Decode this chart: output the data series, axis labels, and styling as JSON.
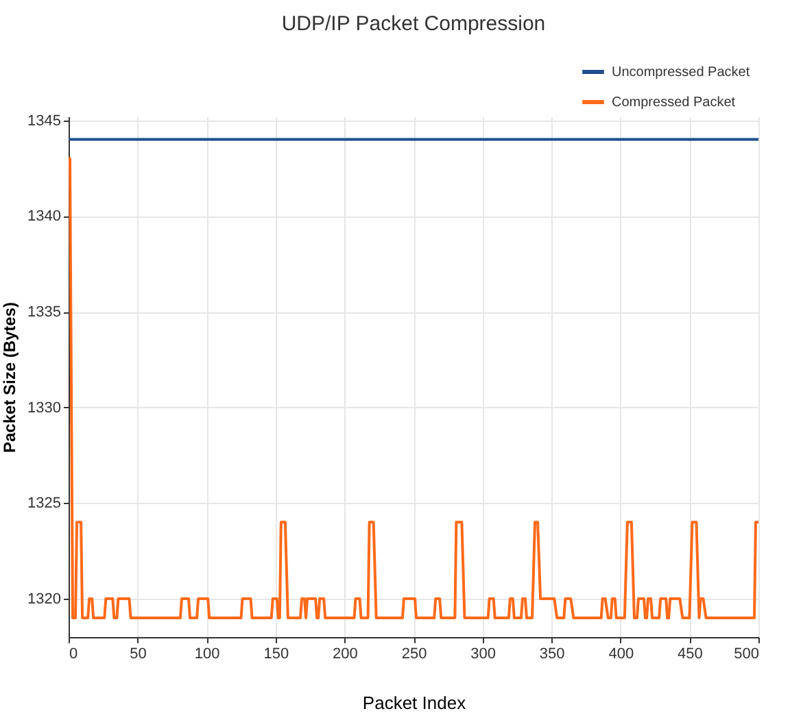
{
  "chart_data": {
    "type": "line",
    "title": "UDP/IP Packet Compression",
    "xlabel": "Packet Index",
    "ylabel": "Packet Size (Bytes)",
    "xlim": [
      0,
      500
    ],
    "xticks": [
      0,
      50,
      100,
      150,
      200,
      250,
      300,
      350,
      400,
      450,
      500
    ],
    "ylim": [
      1318,
      1345.2
    ],
    "yticks": [
      1320,
      1325,
      1330,
      1335,
      1340,
      1345
    ],
    "grid": true,
    "legend": "top right",
    "marker": "none",
    "line_style": "solid",
    "series": [
      {
        "name": "Uncompressed Packet",
        "color": "#1f4e8c",
        "x": [
          0,
          500
        ],
        "values": [
          1344,
          1344
        ]
      },
      {
        "name": "Compressed Packet",
        "color": "#ff6a1a",
        "x": [
          0,
          1,
          3,
          5,
          6,
          9,
          10,
          14,
          15,
          17,
          18,
          26,
          27,
          32,
          33,
          35,
          36,
          44,
          45,
          81,
          82,
          87,
          88,
          93,
          94,
          101,
          102,
          125,
          126,
          132,
          133,
          147,
          148,
          151,
          152,
          153,
          154,
          157,
          159,
          168,
          169,
          171,
          172,
          173,
          179,
          180,
          181,
          182,
          185,
          186,
          207,
          208,
          211,
          212,
          217,
          218,
          221,
          223,
          242,
          243,
          251,
          252,
          265,
          266,
          269,
          270,
          280,
          281,
          285,
          287,
          304,
          305,
          308,
          309,
          319,
          320,
          322,
          323,
          328,
          329,
          331,
          332,
          336,
          338,
          340,
          342,
          352,
          354,
          359,
          360,
          364,
          366,
          386,
          387,
          389,
          391,
          393,
          394,
          396,
          397,
          403,
          405,
          408,
          410,
          412,
          413,
          417,
          418,
          419,
          420,
          422,
          423,
          428,
          429,
          433,
          434,
          435,
          436,
          443,
          445,
          450,
          452,
          455,
          457,
          458,
          460,
          462,
          497,
          498,
          500
        ],
        "values": [
          1343,
          1343,
          1319,
          1319,
          1324,
          1324,
          1319,
          1319,
          1320,
          1320,
          1319,
          1319,
          1320,
          1320,
          1319,
          1319,
          1320,
          1320,
          1319,
          1319,
          1320,
          1320,
          1319,
          1319,
          1320,
          1320,
          1319,
          1319,
          1320,
          1320,
          1319,
          1319,
          1320,
          1320,
          1319,
          1319,
          1324,
          1324,
          1319,
          1319,
          1320,
          1320,
          1319,
          1320,
          1320,
          1319,
          1319,
          1320,
          1320,
          1319,
          1319,
          1320,
          1320,
          1319,
          1319,
          1324,
          1324,
          1319,
          1319,
          1320,
          1320,
          1319,
          1319,
          1320,
          1320,
          1319,
          1319,
          1324,
          1324,
          1319,
          1319,
          1320,
          1320,
          1319,
          1319,
          1320,
          1320,
          1319,
          1319,
          1320,
          1320,
          1319,
          1319,
          1324,
          1324,
          1320,
          1320,
          1319,
          1319,
          1320,
          1320,
          1319,
          1319,
          1320,
          1320,
          1319,
          1319,
          1320,
          1320,
          1319,
          1319,
          1324,
          1324,
          1319,
          1319,
          1320,
          1320,
          1319,
          1319,
          1320,
          1320,
          1319,
          1319,
          1320,
          1320,
          1319,
          1319,
          1320,
          1320,
          1319,
          1319,
          1324,
          1324,
          1319,
          1320,
          1320,
          1319,
          1319,
          1324,
          1324
        ]
      }
    ]
  }
}
